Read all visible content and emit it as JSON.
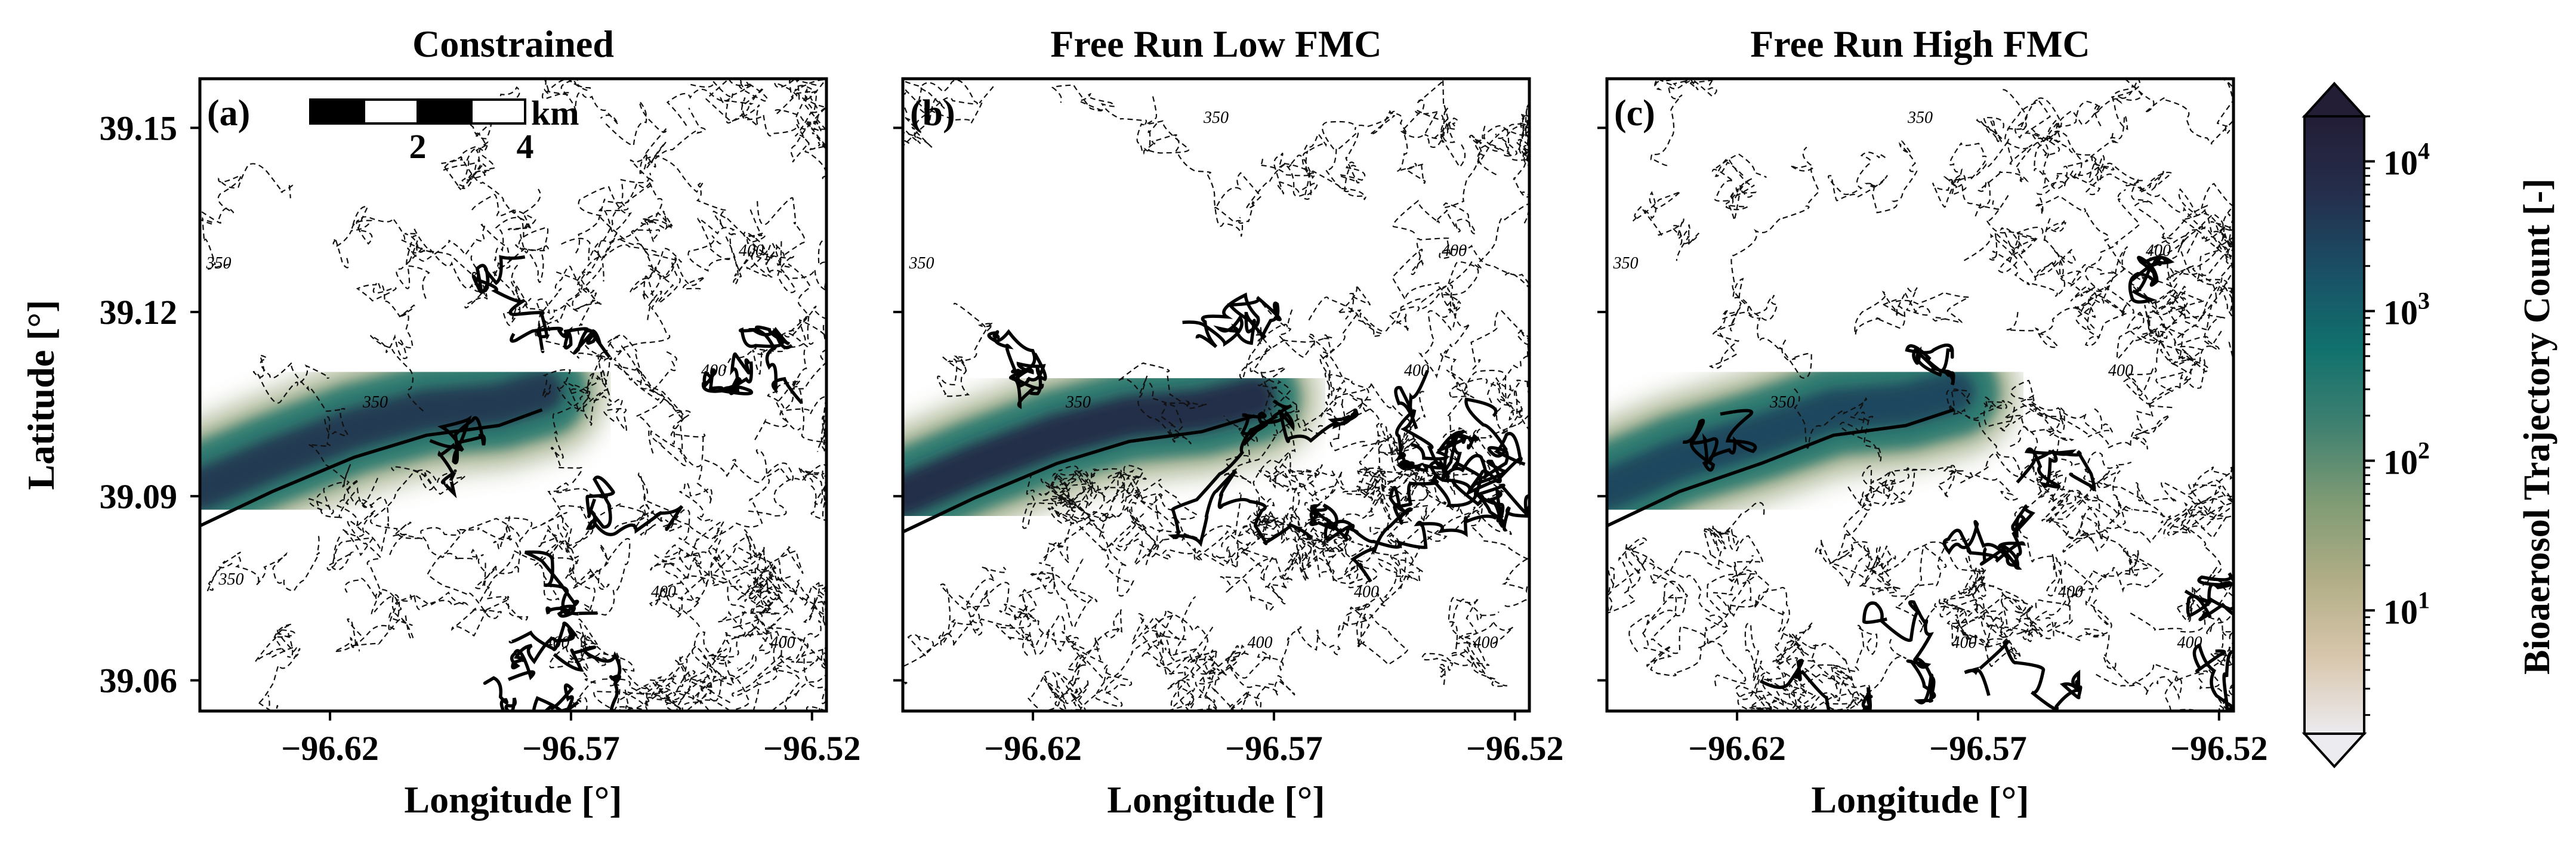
{
  "chart_data": [
    {
      "type": "heatmap",
      "title": "Constrained",
      "panel_label": "(a)",
      "xlabel": "Longitude [$^\\circ$]",
      "ylabel": "Latitude [$^\\circ$]",
      "xlim": [
        -96.647,
        -96.517
      ],
      "ylim": [
        39.055,
        39.158
      ],
      "xticks": [
        -96.62,
        -96.57,
        -96.52
      ],
      "xticklabels": [
        "−96.62",
        "−96.57",
        "−96.52"
      ],
      "yticks": [
        39.06,
        39.09,
        39.12,
        39.15
      ],
      "yticklabels": [
        "39.06",
        "39.09",
        "39.12",
        "39.15"
      ],
      "contour_labels": [
        "350",
        "400",
        "400",
        "400",
        "400",
        "400",
        "350",
        "350",
        "350"
      ],
      "plume": {
        "ridge": [
          [
            -96.647,
            39.091
          ],
          [
            -96.632,
            39.096
          ],
          [
            -96.615,
            39.101
          ],
          [
            -96.6,
            39.104
          ],
          [
            -96.585,
            39.105
          ],
          [
            -96.576,
            39.107
          ]
        ],
        "peak_count": 5000
      },
      "scalebar": {
        "ticklabels": [
          "2",
          "4"
        ],
        "unit": "km"
      }
    },
    {
      "type": "heatmap",
      "title": "Free Run Low FMC",
      "panel_label": "(b)",
      "xlabel": "Longitude [$^\\circ$]",
      "ylabel": "",
      "xlim": [
        -96.647,
        -96.517
      ],
      "ylim": [
        39.055,
        39.158
      ],
      "xticks": [
        -96.62,
        -96.57,
        -96.52
      ],
      "xticklabels": [
        "−96.62",
        "−96.57",
        "−96.52"
      ],
      "contour_labels": [
        "350",
        "400",
        "400",
        "400",
        "400",
        "400",
        "350",
        "350"
      ],
      "plume": {
        "ridge": [
          [
            -96.647,
            39.09
          ],
          [
            -96.632,
            39.095
          ],
          [
            -96.615,
            39.1
          ],
          [
            -96.6,
            39.103
          ],
          [
            -96.585,
            39.104
          ],
          [
            -96.574,
            39.106
          ]
        ],
        "peak_count": 9000
      }
    },
    {
      "type": "heatmap",
      "title": "Free Run High FMC",
      "panel_label": "(c)",
      "xlabel": "Longitude [$^\\circ$]",
      "ylabel": "",
      "xlim": [
        -96.647,
        -96.517
      ],
      "ylim": [
        39.055,
        39.158
      ],
      "xticks": [
        -96.62,
        -96.57,
        -96.52
      ],
      "xticklabels": [
        "−96.62",
        "−96.57",
        "−96.52"
      ],
      "contour_labels": [
        "350",
        "400",
        "400",
        "400",
        "400",
        "400",
        "350",
        "350"
      ],
      "plume": {
        "ridge": [
          [
            -96.647,
            39.091
          ],
          [
            -96.632,
            39.096
          ],
          [
            -96.615,
            39.1
          ],
          [
            -96.6,
            39.104
          ],
          [
            -96.585,
            39.105
          ],
          [
            -96.575,
            39.107
          ]
        ],
        "peak_count": 3000
      }
    }
  ],
  "colorbar": {
    "label": "Bioaerosol Trajectory Count [-]",
    "scale": "log",
    "range": [
      1.5,
      20000
    ],
    "ticks": [
      10,
      100,
      1000,
      10000
    ],
    "tick_mantissa": "10",
    "tick_exponents": [
      "1",
      "2",
      "3",
      "4"
    ],
    "extend": "both",
    "colors": [
      "#ecebef",
      "#d8c6ac",
      "#b1ad86",
      "#7f9b74",
      "#3f8070",
      "#10716d",
      "#1a4f66",
      "#242e4c",
      "#231d36"
    ]
  }
}
